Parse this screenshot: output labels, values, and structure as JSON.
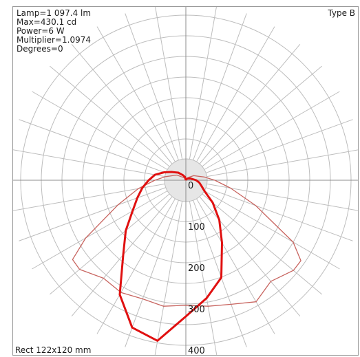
{
  "info": {
    "lamp": "Lamp=1 097.4 lm",
    "max": "Max=430.1 cd",
    "power": "Power=6 W",
    "multiplier": "Multiplier=1.0974",
    "degrees": "Degrees=0"
  },
  "type_label": "Type B",
  "footer_label": "Rect 122x120 mm",
  "colors": {
    "grid": "#bdbdbd",
    "center_disc": "#e6e6e6",
    "curve_c0": "#e01010",
    "curve_c90": "#c8645f",
    "text": "#1a1a1a"
  },
  "chart_data": {
    "type": "polar",
    "units": "cd",
    "r_ticks": [
      0,
      100,
      200,
      300,
      400
    ],
    "r_max": 430,
    "angle_step_deg": 10,
    "series": [
      {
        "style": "thick",
        "points": [
          {
            "angle": -180,
            "r": 0
          },
          {
            "angle": -165,
            "r": 8
          },
          {
            "angle": -150,
            "r": 14
          },
          {
            "angle": -135,
            "r": 26
          },
          {
            "angle": -120,
            "r": 40
          },
          {
            "angle": -110,
            "r": 56
          },
          {
            "angle": -100,
            "r": 76
          },
          {
            "angle": -90,
            "r": 90
          },
          {
            "angle": -80,
            "r": 107
          },
          {
            "angle": -70,
            "r": 125
          },
          {
            "angle": -60,
            "r": 149
          },
          {
            "angle": -50,
            "r": 190
          },
          {
            "angle": -40,
            "r": 236
          },
          {
            "angle": -30,
            "r": 320
          },
          {
            "angle": -20,
            "r": 380
          },
          {
            "angle": -10,
            "r": 395
          },
          {
            "angle": 0,
            "r": 330
          },
          {
            "angle": 10,
            "r": 290
          },
          {
            "angle": 20,
            "r": 251
          },
          {
            "angle": 30,
            "r": 175
          },
          {
            "angle": 40,
            "r": 126
          },
          {
            "angle": 50,
            "r": 85
          },
          {
            "angle": 60,
            "r": 52
          },
          {
            "angle": 70,
            "r": 40
          },
          {
            "angle": 80,
            "r": 33
          },
          {
            "angle": 90,
            "r": 25
          },
          {
            "angle": 110,
            "r": 12
          },
          {
            "angle": 135,
            "r": 6
          },
          {
            "angle": 150,
            "r": 3
          },
          {
            "angle": 180,
            "r": 0
          }
        ]
      },
      {
        "style": "thin",
        "points": [
          {
            "angle": -180,
            "r": 0
          },
          {
            "angle": -150,
            "r": 6
          },
          {
            "angle": -135,
            "r": 10
          },
          {
            "angle": -120,
            "r": 25
          },
          {
            "angle": -100,
            "r": 50
          },
          {
            "angle": -90,
            "r": 75
          },
          {
            "angle": -80,
            "r": 117
          },
          {
            "angle": -70,
            "r": 175
          },
          {
            "angle": -60,
            "r": 280
          },
          {
            "angle": -55,
            "r": 335
          },
          {
            "angle": -50,
            "r": 336
          },
          {
            "angle": -40,
            "r": 310
          },
          {
            "angle": -30,
            "r": 314
          },
          {
            "angle": -20,
            "r": 306
          },
          {
            "angle": -10,
            "r": 310
          },
          {
            "angle": 0,
            "r": 303
          },
          {
            "angle": 10,
            "r": 310
          },
          {
            "angle": 20,
            "r": 320
          },
          {
            "angle": 30,
            "r": 340
          },
          {
            "angle": 40,
            "r": 320
          },
          {
            "angle": 50,
            "r": 340
          },
          {
            "angle": 55,
            "r": 340
          },
          {
            "angle": 60,
            "r": 300
          },
          {
            "angle": 70,
            "r": 180
          },
          {
            "angle": 80,
            "r": 110
          },
          {
            "angle": 90,
            "r": 70
          },
          {
            "angle": 100,
            "r": 45
          },
          {
            "angle": 120,
            "r": 22
          },
          {
            "angle": 135,
            "r": 10
          },
          {
            "angle": 150,
            "r": 5
          },
          {
            "angle": 180,
            "r": 0
          }
        ]
      }
    ]
  }
}
